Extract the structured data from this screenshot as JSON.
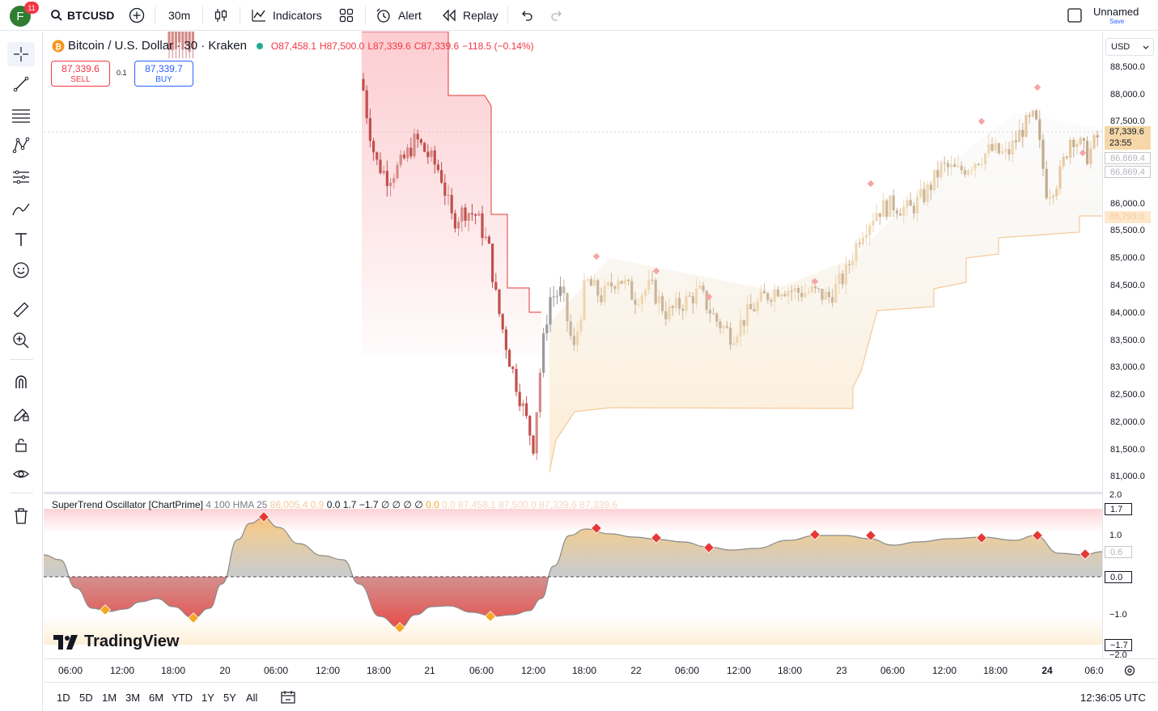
{
  "header": {
    "avatar_letter": "F",
    "notification_count": "11",
    "symbol": "BTCUSD",
    "interval": "30m",
    "indicators_label": "Indicators",
    "alert_label": "Alert",
    "replay_label": "Replay",
    "layout_name": "Unnamed",
    "save_label": "Save"
  },
  "legend": {
    "title": "Bitcoin / U.S. Dollar · 30 · Kraken",
    "open": "O87,458.1",
    "high": "H87,500.0",
    "low": "L87,339.6",
    "close": "C87,339.6",
    "change": "−118.5 (−0.14%)"
  },
  "trade": {
    "sell_price": "87,339.6",
    "sell_label": "SELL",
    "spread": "0.1",
    "buy_price": "87,339.7",
    "buy_label": "BUY"
  },
  "price_axis": {
    "currency": "USD",
    "labels": [
      "88,500.0",
      "88,000.0",
      "87,500.0",
      "86,000.0",
      "85,500.0",
      "85,000.0",
      "84,500.0",
      "84,000.0",
      "83,500.0",
      "83,000.0",
      "82,500.0",
      "82,000.0",
      "81,500.0",
      "81,000.0"
    ],
    "current_price": "87,339.6",
    "countdown": "23:55",
    "level1": "86,869.4",
    "level2": "86,869.4",
    "level3": "85,793.0"
  },
  "oscillator": {
    "name": "SuperTrend Oscillator [ChartPrime]",
    "params": "4 100 HMA 25",
    "values_faded_1": "86,005.4  0.9",
    "values": "0.0  1.7  −1.7  ∅  ∅  ∅  ∅",
    "value_red": "0.0",
    "values_faded_2": "0.0  87,458.1  87,500.0  87,339.6  87,339.6",
    "axis_labels": [
      "2.0",
      "1.0",
      "−1.0",
      "−2.0"
    ],
    "box_top": "1.7",
    "box_mid": "0.6",
    "box_zero": "0.0",
    "box_bottom": "−1.7"
  },
  "time_axis": {
    "labels": [
      "06:00",
      "12:00",
      "18:00",
      "20",
      "06:00",
      "12:00",
      "18:00",
      "21",
      "06:00",
      "12:00",
      "18:00",
      "22",
      "06:00",
      "12:00",
      "18:00",
      "23",
      "06:00",
      "12:00",
      "18:00",
      "24",
      "06:0"
    ]
  },
  "ranges": [
    "1D",
    "5D",
    "1M",
    "3M",
    "6M",
    "YTD",
    "1Y",
    "5Y",
    "All"
  ],
  "clock": "12:36:05 UTC",
  "brand": "TradingView",
  "colors": {
    "up": "#d9c3a0",
    "down": "#c0504d",
    "accent": "#2962ff",
    "red": "#f23645",
    "amber": "#f5a623"
  }
}
